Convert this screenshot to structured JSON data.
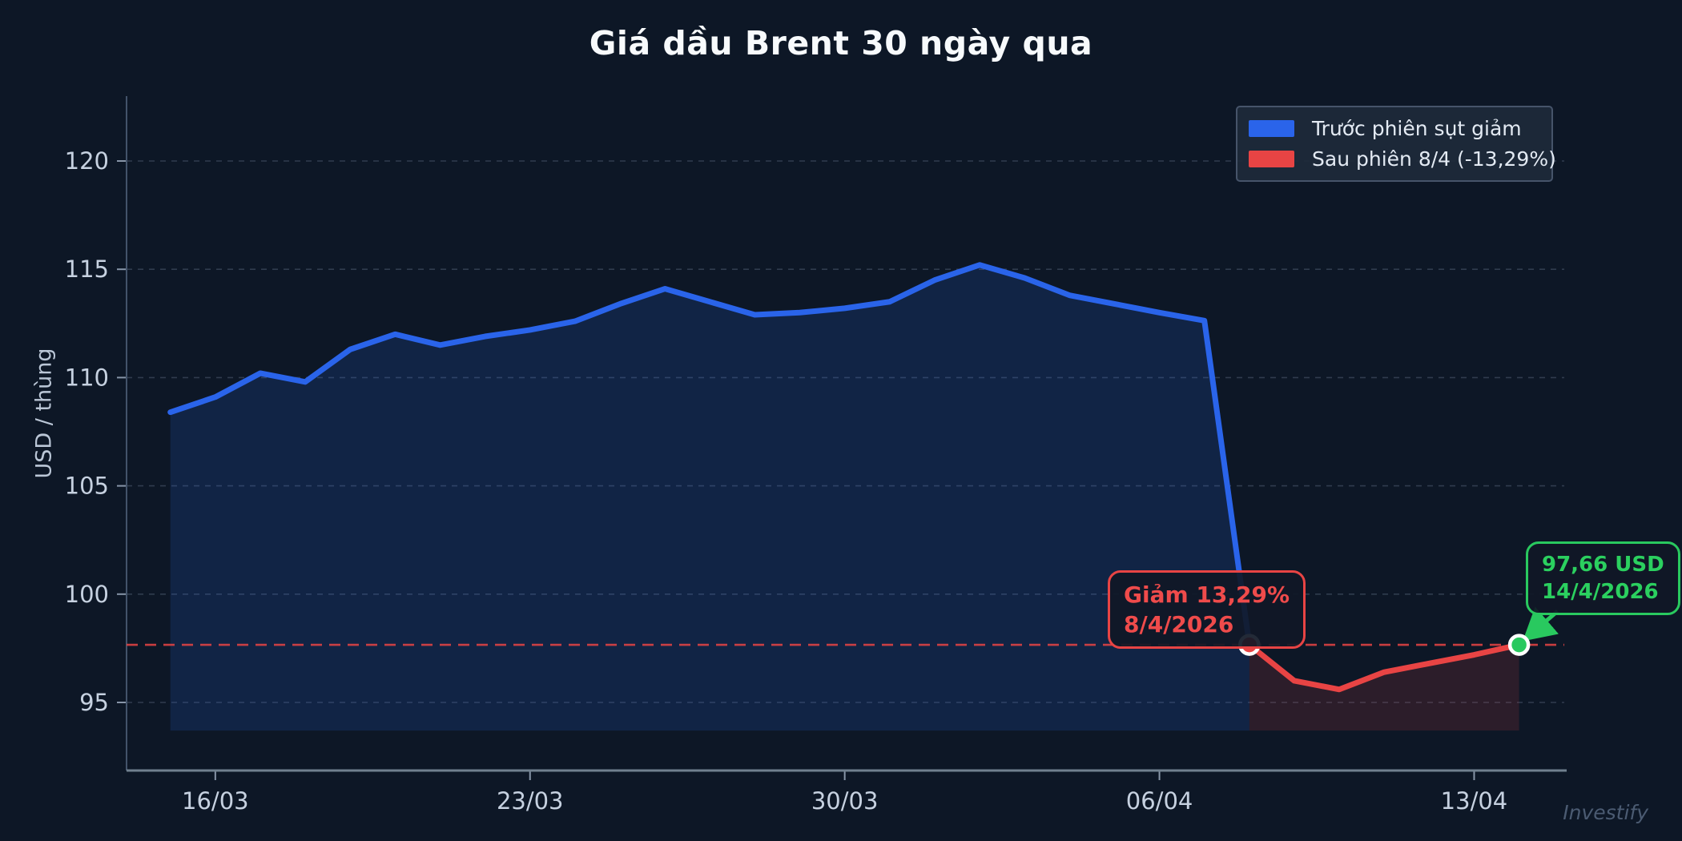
{
  "title": "Giá dầu Brent 30 ngày qua",
  "watermark": "Investify",
  "y_axis_title": "USD / thùng",
  "legend": {
    "items": [
      {
        "label": "Trước phiên sụt giảm",
        "color": "#2a64ea"
      },
      {
        "label": "Sau phiên 8/4 (-13,29%)",
        "color": "#e84444"
      }
    ]
  },
  "annotations": {
    "drop": {
      "line1": "Giảm 13,29%",
      "line2": "8/4/2026",
      "color": "#e84444"
    },
    "current": {
      "line1": "97,66 USD",
      "line2": "14/4/2026",
      "color": "#29c95f"
    }
  },
  "chart_data": {
    "type": "area",
    "title": "Giá dầu Brent 30 ngày qua",
    "ylabel": "USD / thùng",
    "ylim": [
      91.8,
      123.2
    ],
    "yticks": [
      95,
      100,
      105,
      110,
      115,
      120
    ],
    "grid": true,
    "legend_position": "top-right",
    "categories": [
      "15/03",
      "16/03",
      "17/03",
      "18/03",
      "19/03",
      "20/03",
      "21/03",
      "22/03",
      "23/03",
      "24/03",
      "25/03",
      "26/03",
      "27/03",
      "28/03",
      "29/03",
      "30/03",
      "31/03",
      "01/04",
      "02/04",
      "03/04",
      "04/04",
      "05/04",
      "06/04",
      "07/04",
      "08/04",
      "09/04",
      "10/04",
      "11/04",
      "12/04",
      "13/04",
      "14/04"
    ],
    "xticks": [
      {
        "index": 1,
        "label": "16/03"
      },
      {
        "index": 8,
        "label": "23/03"
      },
      {
        "index": 15,
        "label": "30/03"
      },
      {
        "index": 22,
        "label": "06/04"
      },
      {
        "index": 29,
        "label": "13/04"
      }
    ],
    "fill_base": 93.7,
    "series": [
      {
        "name": "Trước phiên sụt giảm",
        "color": "#2a64ea",
        "fill": "rgba(45,105,235,0.16)",
        "start_index": 0,
        "values": [
          108.4,
          109.1,
          110.2,
          109.8,
          111.3,
          112.0,
          111.5,
          111.9,
          112.2,
          112.6,
          113.4,
          114.1,
          113.5,
          112.9,
          113.0,
          113.2,
          113.5,
          114.5,
          115.2,
          114.6,
          113.8,
          113.4,
          113.0,
          112.63,
          97.66
        ]
      },
      {
        "name": "Sau phiên 8/4 (-13,29%)",
        "color": "#e84444",
        "fill": "rgba(232,68,68,0.14)",
        "start_index": 24,
        "values": [
          97.66,
          96.0,
          95.6,
          96.4,
          96.8,
          97.2,
          97.66
        ]
      }
    ],
    "ref_line": {
      "value": 97.66,
      "color": "#e84444",
      "style": "dashed"
    },
    "markers": [
      {
        "name": "drop-point",
        "category": "08/04",
        "index": 24,
        "value": 97.66,
        "color": "#e84444"
      },
      {
        "name": "current-point",
        "category": "14/04",
        "index": 30,
        "value": 97.66,
        "color": "#29c95f"
      }
    ]
  }
}
